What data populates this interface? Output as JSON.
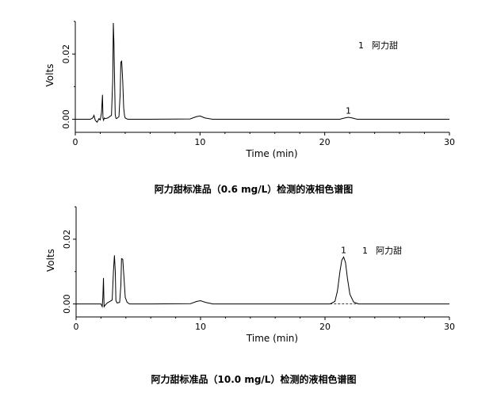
{
  "chart_data": [
    {
      "type": "line",
      "title": "阿力甜标准品（0.6 mg/L）检测的液相色谱图",
      "xlabel": "Time (min)",
      "ylabel": "Volts",
      "xlim": [
        0,
        30
      ],
      "ylim": [
        -0.004,
        0.03
      ],
      "x_ticks": [
        0,
        10,
        20,
        30
      ],
      "y_ticks": [
        0.0,
        0.02
      ],
      "y_tick_labels": [
        "0.00",
        "0.02"
      ],
      "legend": {
        "number": "1",
        "name": "阿力甜"
      },
      "peak_labels": [
        {
          "label": "1",
          "x": 21.9,
          "y": 0.0005
        }
      ],
      "series": [
        {
          "x": [
            0,
            1.2,
            1.4,
            1.5,
            1.6,
            1.75,
            1.9,
            2.0,
            2.1,
            2.18,
            2.22,
            2.27,
            2.32,
            2.4,
            2.6,
            2.9,
            3.0,
            3.05,
            3.1,
            3.15,
            3.2,
            3.25,
            3.3,
            3.5,
            3.6,
            3.65,
            3.72,
            3.8,
            3.88,
            3.95,
            4.0,
            4.2,
            6,
            9.2,
            9.7,
            10.0,
            10.4,
            11.0,
            14,
            18,
            21.2,
            21.6,
            21.9,
            22.2,
            22.6,
            25,
            30
          ],
          "y": [
            0,
            0,
            0.0004,
            0.0012,
            -0.0003,
            -0.0009,
            0.0002,
            -0.0002,
            0.002,
            0.0075,
            0.0003,
            -0.0003,
            0.0004,
            0.0002,
            0.0004,
            0.0012,
            0.012,
            0.0295,
            0.023,
            0.012,
            0.0015,
            0.0004,
            0.0002,
            0.0008,
            0.008,
            0.0175,
            0.0178,
            0.012,
            0.0035,
            0.001,
            0.0004,
            0,
            0,
            0.0001,
            0.0008,
            0.001,
            0.0004,
            0,
            0,
            0,
            0,
            0.0004,
            0.0006,
            0.0004,
            0,
            0,
            0
          ]
        }
      ]
    },
    {
      "type": "line",
      "title": "阿力甜标准品（10.0 mg/L）检测的液相色谱图",
      "xlabel": "Time (min)",
      "ylabel": "Volts",
      "xlim": [
        0,
        30
      ],
      "ylim": [
        -0.004,
        0.03
      ],
      "x_ticks": [
        0,
        10,
        20,
        30
      ],
      "y_ticks": [
        0.0,
        0.02
      ],
      "y_tick_labels": [
        "0.00",
        "0.02"
      ],
      "legend": {
        "number": "1",
        "name": "阿力甜"
      },
      "peak_labels": [
        {
          "label": "1",
          "x": 21.5,
          "y": 0.0145
        }
      ],
      "series": [
        {
          "x": [
            0,
            2.0,
            2.1,
            2.15,
            2.2,
            2.25,
            2.3,
            2.5,
            2.9,
            3.0,
            3.08,
            3.15,
            3.2,
            3.3,
            3.5,
            3.6,
            3.65,
            3.75,
            3.85,
            3.95,
            4.1,
            4.3,
            6,
            9.2,
            9.7,
            10.0,
            10.4,
            11.0,
            15,
            20.4,
            20.8,
            21.0,
            21.2,
            21.35,
            21.5,
            21.65,
            21.8,
            22.0,
            22.3,
            22.7,
            25,
            30
          ],
          "y": [
            0,
            0,
            -0.0008,
            0.002,
            0.008,
            -0.001,
            -0.0005,
            0.0003,
            0.0012,
            0.01,
            0.015,
            0.01,
            0.001,
            0.0003,
            0.0005,
            0.006,
            0.014,
            0.0138,
            0.008,
            0.002,
            0.0005,
            0,
            0,
            0.0001,
            0.0008,
            0.001,
            0.0005,
            0,
            0,
            0,
            0.0008,
            0.004,
            0.01,
            0.0135,
            0.0145,
            0.0128,
            0.008,
            0.003,
            0.0006,
            0,
            0,
            0
          ]
        }
      ]
    }
  ]
}
